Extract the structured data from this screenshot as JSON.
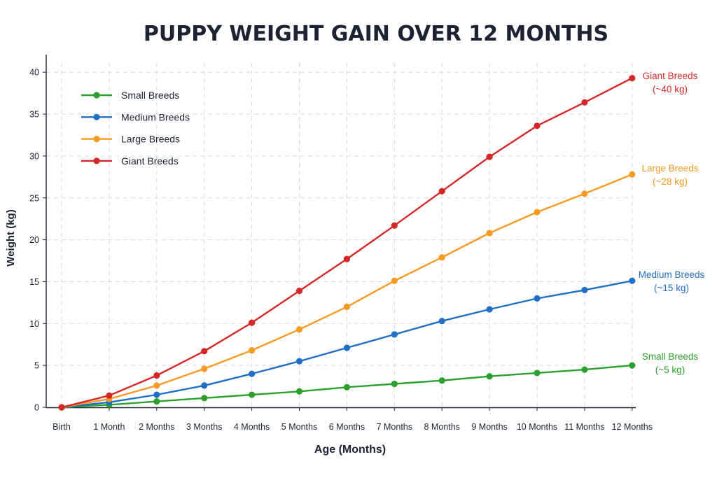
{
  "chart_data": {
    "type": "line",
    "title": "PUPPY WEIGHT GAIN OVER 12 MONTHS",
    "xlabel": "Age (Months)",
    "ylabel": "Weight (kg)",
    "categories": [
      "Birth",
      "1 Month",
      "2 Months",
      "3 Months",
      "4 Months",
      "5 Months",
      "6 Months",
      "7 Months",
      "8 Months",
      "9 Months",
      "10 Months",
      "11 Months",
      "12 Months"
    ],
    "yticks": [
      0,
      5,
      10,
      15,
      20,
      25,
      30,
      35,
      40
    ],
    "ylim": [
      0,
      40
    ],
    "grid": true,
    "legend_position": "top-left",
    "series": [
      {
        "name": "Small Breeds",
        "color": "#2ca02c",
        "values": [
          0,
          0.3,
          0.7,
          1.1,
          1.5,
          1.9,
          2.4,
          2.8,
          3.2,
          3.7,
          4.1,
          4.5,
          5.0
        ],
        "end_label": [
          "Small Breeds",
          "(~5 kg)"
        ]
      },
      {
        "name": "Medium Breeds",
        "color": "#1f6fc5",
        "values": [
          0,
          0.6,
          1.5,
          2.6,
          4.0,
          5.5,
          7.1,
          8.7,
          10.3,
          11.7,
          13.0,
          14.0,
          15.1
        ],
        "end_label": [
          "Medium Breeds",
          "(~15 kg)"
        ]
      },
      {
        "name": "Large Breeds",
        "color": "#f59a23",
        "values": [
          0,
          1.0,
          2.6,
          4.6,
          6.8,
          9.3,
          12.0,
          15.1,
          17.9,
          20.8,
          23.3,
          25.5,
          27.8
        ],
        "end_label": [
          "Large Breeds",
          "(~28 kg)"
        ]
      },
      {
        "name": "Giant Breeds",
        "color": "#d62728",
        "values": [
          0,
          1.4,
          3.8,
          6.7,
          10.1,
          13.9,
          17.7,
          21.7,
          25.8,
          29.9,
          33.6,
          36.4,
          39.3
        ],
        "end_label": [
          "Giant Breeds",
          "(~40 kg)"
        ]
      }
    ]
  }
}
